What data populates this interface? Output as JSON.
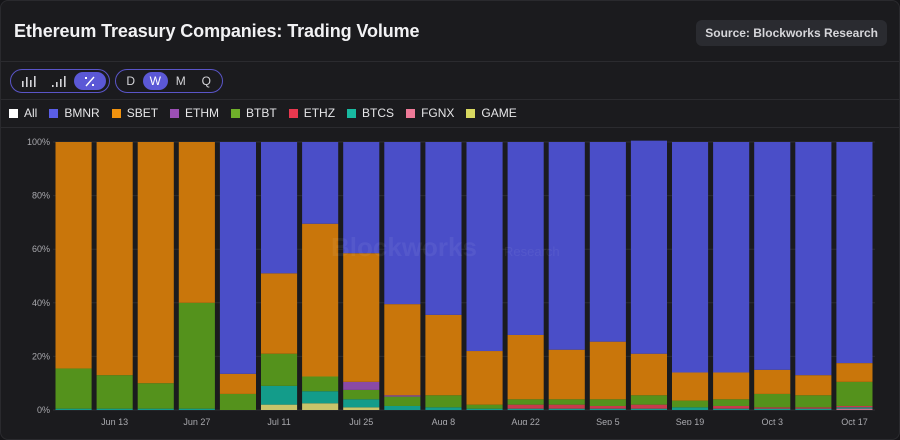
{
  "header": {
    "title": "Ethereum Treasury Companies: Trading Volume",
    "source": "Source: Blockworks Research"
  },
  "controls": {
    "chart_modes": [
      {
        "name": "bar-chart-icon",
        "glyph": "ılıl",
        "active": false
      },
      {
        "name": "cumulative-bar-icon",
        "glyph": ".ıl",
        "active": false
      },
      {
        "name": "percent-icon",
        "glyph": "%",
        "active": true
      }
    ],
    "periods": [
      {
        "label": "D",
        "active": false
      },
      {
        "label": "W",
        "active": true
      },
      {
        "label": "M",
        "active": false
      },
      {
        "label": "Q",
        "active": false
      }
    ]
  },
  "legend": [
    {
      "label": "All",
      "color": "#ffffff"
    },
    {
      "label": "BMNR",
      "color": "#5a5ee6"
    },
    {
      "label": "SBET",
      "color": "#f0920f"
    },
    {
      "label": "ETHM",
      "color": "#9b4fb5"
    },
    {
      "label": "BTBT",
      "color": "#6fb02a"
    },
    {
      "label": "ETHZ",
      "color": "#e8384f"
    },
    {
      "label": "BTCS",
      "color": "#18b9a0"
    },
    {
      "label": "FGNX",
      "color": "#ee7a98"
    },
    {
      "label": "GAME",
      "color": "#d8d860"
    }
  ],
  "watermark": {
    "brand": "Blockworks",
    "sub": "Research"
  },
  "chart_data": {
    "type": "bar",
    "stacked": true,
    "normalized": true,
    "title": "Ethereum Treasury Companies: Trading Volume",
    "xlabel": "",
    "ylabel": "",
    "ylim": [
      0,
      100
    ],
    "yticks": [
      "0%",
      "20%",
      "40%",
      "60%",
      "80%",
      "100%"
    ],
    "ytick_values": [
      0,
      20,
      40,
      60,
      80,
      100
    ],
    "x_tick_labels": [
      {
        "index": 1,
        "label": "Jun 13"
      },
      {
        "index": 3,
        "label": "Jun 27"
      },
      {
        "index": 5,
        "label": "Jul 11"
      },
      {
        "index": 7,
        "label": "Jul 25"
      },
      {
        "index": 9,
        "label": "Aug 8"
      },
      {
        "index": 11,
        "label": "Aug 22"
      },
      {
        "index": 13,
        "label": "Sep 5"
      },
      {
        "index": 15,
        "label": "Sep 19"
      },
      {
        "index": 17,
        "label": "Oct 3"
      },
      {
        "index": 19,
        "label": "Oct 17"
      }
    ],
    "categories": [
      "Jun 6",
      "Jun 13",
      "Jun 20",
      "Jun 27",
      "Jul 4",
      "Jul 11",
      "Jul 18",
      "Jul 25",
      "Aug 1",
      "Aug 8",
      "Aug 15",
      "Aug 22",
      "Aug 29",
      "Sep 5",
      "Sep 12",
      "Sep 19",
      "Sep 26",
      "Oct 3",
      "Oct 10",
      "Oct 17"
    ],
    "series": [
      {
        "name": "GAME",
        "color": "#c9c46a",
        "values": [
          0,
          0,
          0,
          0,
          0,
          2,
          2.5,
          1,
          0,
          0,
          0,
          0,
          0,
          0,
          0,
          0,
          0,
          0,
          0,
          0
        ]
      },
      {
        "name": "FGNX",
        "color": "#c87088",
        "values": [
          0,
          0,
          0,
          0,
          0,
          0,
          0,
          0,
          0,
          0,
          0,
          0,
          0,
          0,
          0,
          0,
          0,
          0,
          0,
          0.5
        ]
      },
      {
        "name": "BTCS",
        "color": "#139c8a",
        "values": [
          0.5,
          0.5,
          0.5,
          0.5,
          0,
          7,
          4.5,
          3,
          1.5,
          1,
          0.5,
          0.5,
          0.5,
          0.5,
          0.5,
          1,
          0.5,
          0.5,
          0.5,
          0.5
        ]
      },
      {
        "name": "ETHZ",
        "color": "#c83a4c",
        "values": [
          0,
          0,
          0,
          0,
          0,
          0,
          0,
          0,
          0,
          0,
          0,
          1.5,
          1.5,
          1,
          1.5,
          0,
          1,
          0.5,
          0.5,
          0.5
        ]
      },
      {
        "name": "BTBT",
        "color": "#54921c",
        "values": [
          15,
          12.5,
          9.5,
          39.5,
          6,
          12,
          5.5,
          3.5,
          3.5,
          4.5,
          1.5,
          2,
          2,
          2.5,
          3.5,
          2.5,
          2.5,
          5,
          4.5,
          9
        ]
      },
      {
        "name": "ETHM",
        "color": "#8a4aa6",
        "values": [
          0,
          0,
          0,
          0,
          0,
          0,
          0,
          3,
          0.5,
          0,
          0,
          0,
          0,
          0,
          0,
          0,
          0,
          0,
          0,
          0
        ]
      },
      {
        "name": "SBET",
        "color": "#c9760b",
        "values": [
          84.5,
          87,
          90,
          60,
          7.5,
          30,
          57,
          48,
          34,
          30,
          20,
          24,
          18.5,
          21.5,
          15.5,
          10.5,
          10,
          9,
          7.5,
          7
        ]
      },
      {
        "name": "BMNR",
        "color": "#4a4ec8",
        "values": [
          0,
          0,
          0,
          0,
          86.5,
          49,
          30.5,
          41.5,
          60.5,
          64.5,
          78,
          72,
          77.5,
          74.5,
          79.5,
          86,
          86,
          85,
          87,
          82.5
        ]
      }
    ],
    "grid": true,
    "legend_position": "top-left"
  }
}
